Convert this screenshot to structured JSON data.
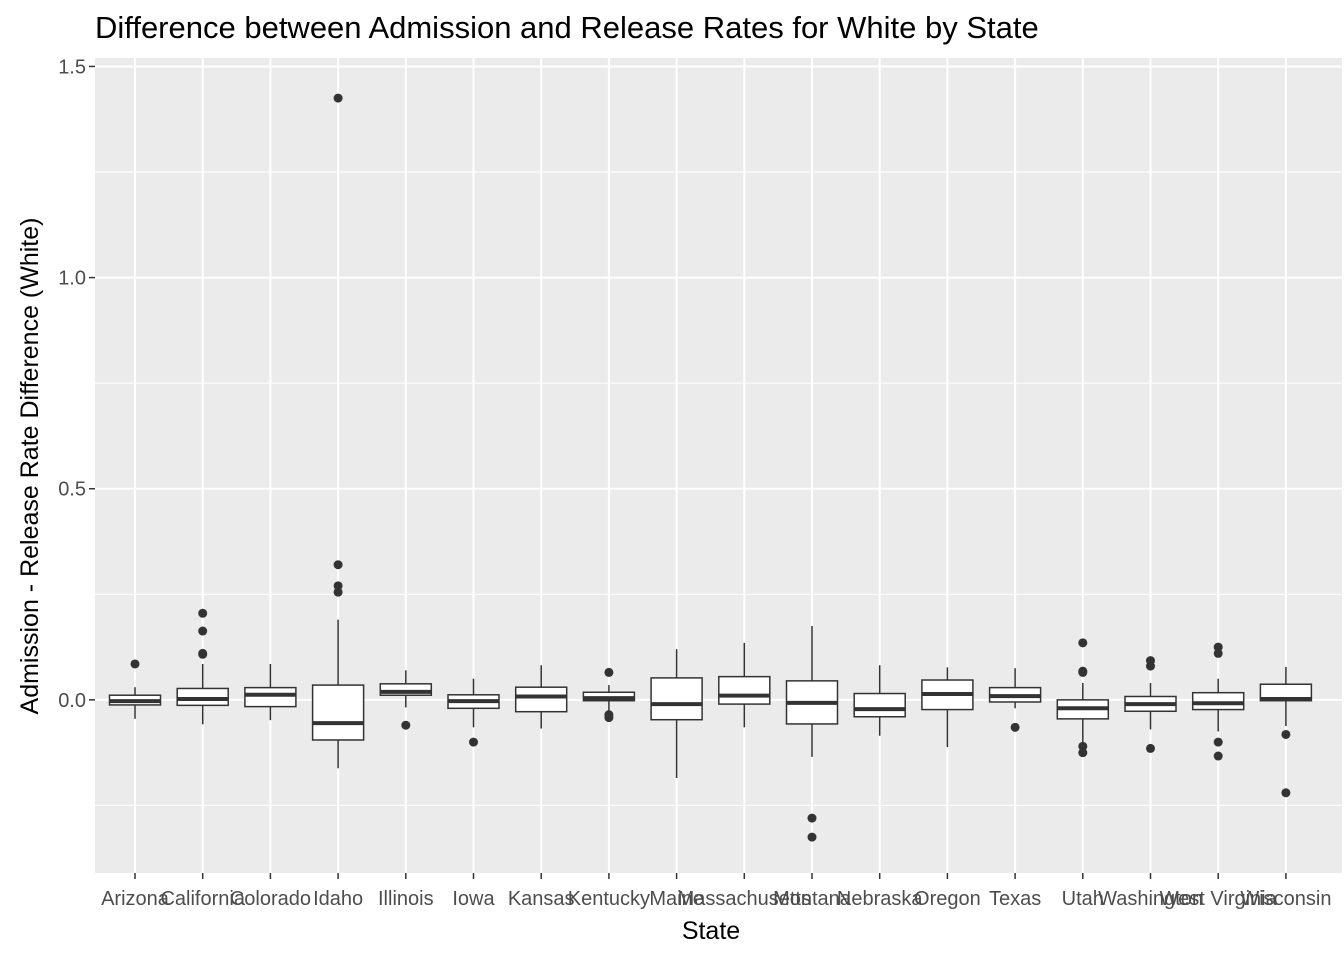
{
  "chart_data": {
    "type": "boxplot",
    "title": "Difference between Admission and Release Rates for White by State",
    "xlabel": "State",
    "ylabel": "Admission - Release Rate Difference (White)",
    "ylim": [
      -0.41,
      1.52
    ],
    "yticks": [
      0.0,
      0.5,
      1.0,
      1.5
    ],
    "ytick_labels": [
      "0.0",
      "0.5",
      "1.0",
      "1.5"
    ],
    "grid": true,
    "colors": {
      "panel": "#ebebeb",
      "grid": "#ffffff",
      "box_fill": "#ffffff",
      "box_line": "#333333",
      "outlier": "#333333"
    },
    "categories": [
      "Arizona",
      "California",
      "Colorado",
      "Idaho",
      "Illinois",
      "Iowa",
      "Kansas",
      "Kentucky",
      "Maine",
      "Massachusetts",
      "Montana",
      "Nebraska",
      "Oregon",
      "Texas",
      "Utah",
      "Washington",
      "West Virginia",
      "Wisconsin"
    ],
    "boxes": [
      {
        "state": "Arizona",
        "lower_whisker": -0.045,
        "q1": -0.012,
        "median": -0.003,
        "q3": 0.011,
        "upper_whisker": 0.03,
        "outliers": [
          0.085
        ]
      },
      {
        "state": "California",
        "lower_whisker": -0.058,
        "q1": -0.013,
        "median": 0.002,
        "q3": 0.027,
        "upper_whisker": 0.085,
        "outliers": [
          0.11,
          0.108,
          0.163,
          0.205
        ]
      },
      {
        "state": "Colorado",
        "lower_whisker": -0.048,
        "q1": -0.016,
        "median": 0.012,
        "q3": 0.029,
        "upper_whisker": 0.085,
        "outliers": []
      },
      {
        "state": "Idaho",
        "lower_whisker": -0.162,
        "q1": -0.095,
        "median": -0.055,
        "q3": 0.035,
        "upper_whisker": 0.19,
        "outliers": [
          0.255,
          0.27,
          0.32,
          1.425
        ]
      },
      {
        "state": "Illinois",
        "lower_whisker": -0.018,
        "q1": 0.011,
        "median": 0.019,
        "q3": 0.038,
        "upper_whisker": 0.07,
        "outliers": [
          -0.06
        ]
      },
      {
        "state": "Iowa",
        "lower_whisker": -0.065,
        "q1": -0.02,
        "median": -0.003,
        "q3": 0.012,
        "upper_whisker": 0.05,
        "outliers": [
          -0.1
        ]
      },
      {
        "state": "Kansas",
        "lower_whisker": -0.068,
        "q1": -0.028,
        "median": 0.008,
        "q3": 0.03,
        "upper_whisker": 0.082,
        "outliers": []
      },
      {
        "state": "Kentucky",
        "lower_whisker": -0.025,
        "q1": -0.002,
        "median": 0.004,
        "q3": 0.018,
        "upper_whisker": 0.035,
        "outliers": [
          -0.035,
          -0.042,
          0.065
        ]
      },
      {
        "state": "Maine",
        "lower_whisker": -0.185,
        "q1": -0.047,
        "median": -0.01,
        "q3": 0.052,
        "upper_whisker": 0.12,
        "outliers": []
      },
      {
        "state": "Massachusetts",
        "lower_whisker": -0.065,
        "q1": -0.01,
        "median": 0.01,
        "q3": 0.055,
        "upper_whisker": 0.135,
        "outliers": []
      },
      {
        "state": "Montana",
        "lower_whisker": -0.135,
        "q1": -0.057,
        "median": -0.007,
        "q3": 0.045,
        "upper_whisker": 0.175,
        "outliers": [
          -0.28,
          -0.325
        ]
      },
      {
        "state": "Nebraska",
        "lower_whisker": -0.085,
        "q1": -0.04,
        "median": -0.022,
        "q3": 0.015,
        "upper_whisker": 0.082,
        "outliers": []
      },
      {
        "state": "Oregon",
        "lower_whisker": -0.112,
        "q1": -0.023,
        "median": 0.014,
        "q3": 0.047,
        "upper_whisker": 0.077,
        "outliers": []
      },
      {
        "state": "Texas",
        "lower_whisker": -0.02,
        "q1": -0.005,
        "median": 0.009,
        "q3": 0.029,
        "upper_whisker": 0.075,
        "outliers": [
          -0.065
        ]
      },
      {
        "state": "Utah",
        "lower_whisker": -0.102,
        "q1": -0.045,
        "median": -0.02,
        "q3": 0.0,
        "upper_whisker": 0.04,
        "outliers": [
          0.068,
          0.065,
          0.135,
          -0.11,
          -0.125
        ]
      },
      {
        "state": "Washington",
        "lower_whisker": -0.07,
        "q1": -0.027,
        "median": -0.01,
        "q3": 0.008,
        "upper_whisker": 0.04,
        "outliers": [
          0.08,
          0.093,
          -0.115
        ]
      },
      {
        "state": "West Virginia",
        "lower_whisker": -0.075,
        "q1": -0.023,
        "median": -0.008,
        "q3": 0.017,
        "upper_whisker": 0.05,
        "outliers": [
          0.11,
          0.125,
          -0.1,
          -0.133
        ]
      },
      {
        "state": "Wisconsin",
        "lower_whisker": -0.062,
        "q1": -0.002,
        "median": 0.002,
        "q3": 0.037,
        "upper_whisker": 0.078,
        "outliers": [
          -0.082,
          -0.22
        ]
      }
    ]
  }
}
